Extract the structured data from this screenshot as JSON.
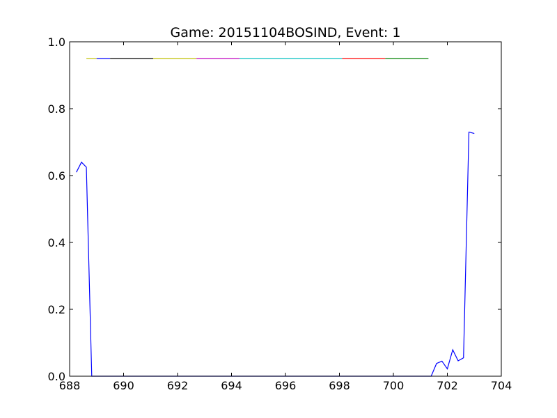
{
  "chart_data": {
    "type": "line",
    "title": "Game: 20151104BOSIND, Event: 1",
    "xlabel": "",
    "ylabel": "",
    "xlim": [
      688,
      704
    ],
    "ylim": [
      0.0,
      1.0
    ],
    "x_ticks": [
      688,
      690,
      692,
      694,
      696,
      698,
      700,
      702,
      704
    ],
    "x_tick_labels": [
      "688",
      "690",
      "692",
      "694",
      "696",
      "698",
      "700",
      "702",
      "704"
    ],
    "y_ticks": [
      0.0,
      0.2,
      0.4,
      0.6,
      0.8,
      1.0
    ],
    "y_tick_labels": [
      "0.0",
      "0.2",
      "0.4",
      "0.6",
      "0.8",
      "1.0"
    ],
    "grid": false,
    "series": [
      {
        "color": "#0000ff",
        "points": [
          [
            688.25,
            0.61
          ],
          [
            688.44,
            0.64
          ],
          [
            688.62,
            0.625
          ],
          [
            688.82,
            0.0
          ],
          [
            701.4,
            0.0
          ],
          [
            701.6,
            0.038
          ],
          [
            701.8,
            0.045
          ],
          [
            702.0,
            0.022
          ],
          [
            702.2,
            0.079
          ],
          [
            702.4,
            0.046
          ],
          [
            702.6,
            0.055
          ],
          [
            702.8,
            0.73
          ],
          [
            703.0,
            0.726
          ]
        ]
      }
    ],
    "segments": [
      {
        "color": "#bfbf00",
        "x": [
          688.62,
          689.0
        ],
        "y": 0.95
      },
      {
        "color": "#0000ff",
        "x": [
          689.0,
          689.5
        ],
        "y": 0.95
      },
      {
        "color": "#000000",
        "x": [
          689.5,
          691.1
        ],
        "y": 0.95
      },
      {
        "color": "#bfbf00",
        "x": [
          691.1,
          692.7
        ],
        "y": 0.95
      },
      {
        "color": "#bf00bf",
        "x": [
          692.7,
          694.3
        ],
        "y": 0.95
      },
      {
        "color": "#00bfbf",
        "x": [
          694.3,
          698.1
        ],
        "y": 0.95
      },
      {
        "color": "#ff0000",
        "x": [
          698.1,
          699.7
        ],
        "y": 0.95
      },
      {
        "color": "#008000",
        "x": [
          699.7,
          701.3
        ],
        "y": 0.95
      }
    ]
  }
}
